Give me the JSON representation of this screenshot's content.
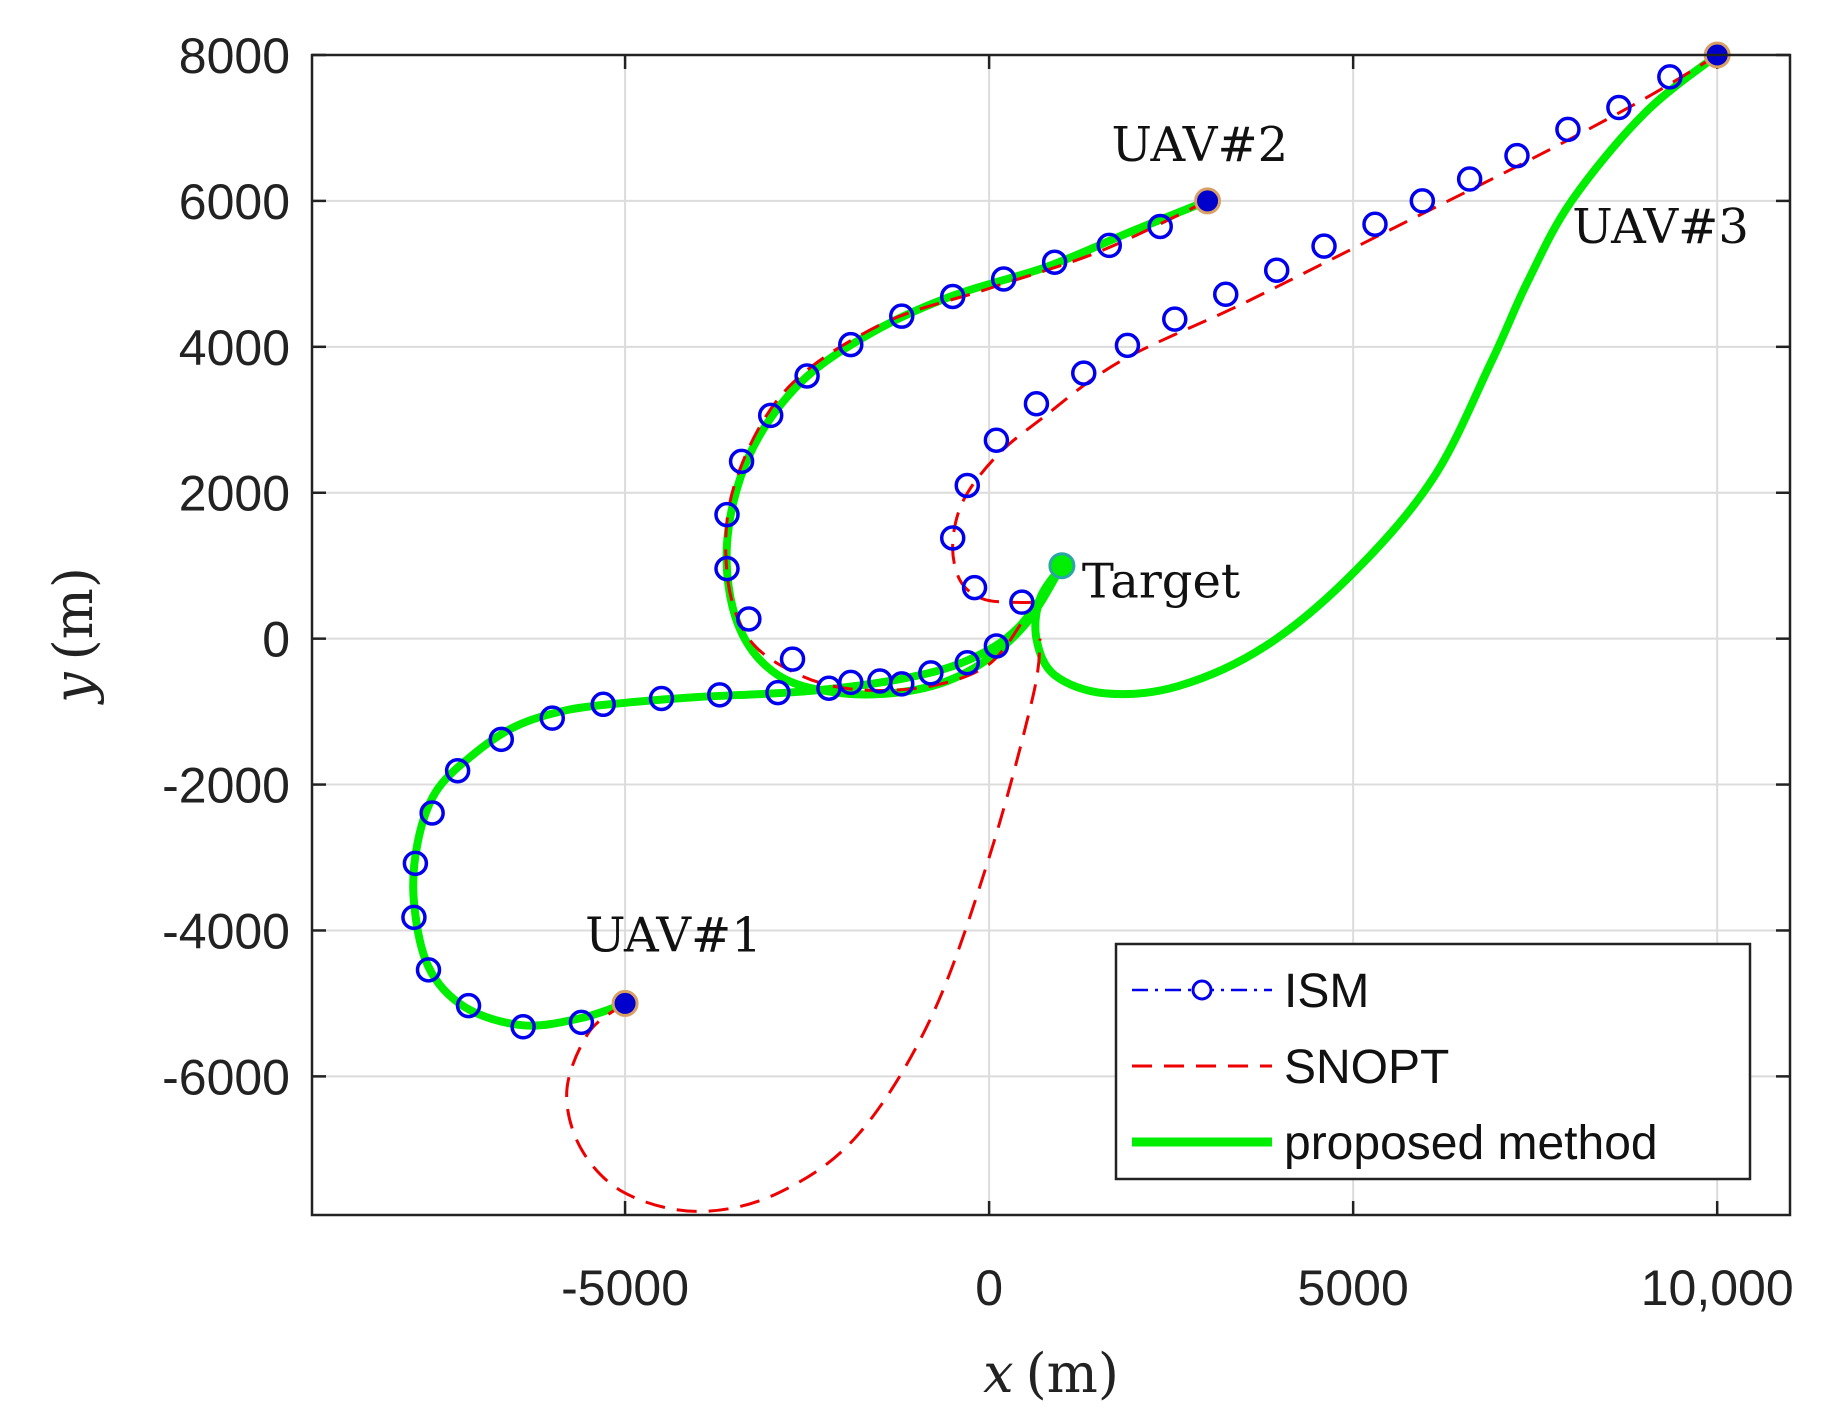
{
  "chart_data": {
    "type": "line",
    "title": "",
    "xlabel_var": "x",
    "xlabel_unit": "(m)",
    "ylabel_var": "y",
    "ylabel_unit": "(m)",
    "xlim": [
      -9300,
      11000
    ],
    "ylim": [
      -7900,
      8000
    ],
    "xticks": [
      -5000,
      0,
      5000,
      10000
    ],
    "xtick_labels": [
      "-5000",
      "0",
      "5000",
      "10,000"
    ],
    "yticks": [
      8000,
      6000,
      4000,
      2000,
      0,
      -2000,
      -4000,
      -6000
    ],
    "ytick_labels": [
      "8000",
      "6000",
      "4000",
      "2000",
      "0",
      "-2000",
      "-4000",
      "-6000"
    ],
    "grid": true,
    "legend_position": "bottom-right",
    "legend": [
      {
        "label": "ISM",
        "style": "dash-dot line with circle markers",
        "color": "#0000ee"
      },
      {
        "label": "SNOPT",
        "style": "dashed line",
        "color": "#ee0000"
      },
      {
        "label": "proposed method",
        "style": "solid thick line",
        "color": "#00ee00"
      }
    ],
    "points": [
      {
        "label": "UAV#1",
        "x": -5000,
        "y": -5000,
        "color": "#0000cc"
      },
      {
        "label": "UAV#2",
        "x": 3000,
        "y": 6000,
        "color": "#0000cc"
      },
      {
        "label": "UAV#3",
        "x": 10000,
        "y": 8000,
        "color": "#0000cc"
      },
      {
        "label": "Target",
        "x": 1000,
        "y": 1000,
        "color": "#00ee00"
      }
    ],
    "series": [
      {
        "name": "proposed method",
        "color": "#00ee00",
        "path": "UAV#1",
        "x": [
          -5000,
          -5600,
          -6400,
          -7200,
          -7700,
          -7900,
          -7850,
          -7600,
          -7100,
          -6500,
          -5800,
          -5000,
          -4000,
          -2500,
          -1200,
          -300,
          400,
          1000
        ],
        "y": [
          -5000,
          -5200,
          -5300,
          -5050,
          -4500,
          -3600,
          -2800,
          -2100,
          -1600,
          -1200,
          -980,
          -880,
          -800,
          -720,
          -550,
          -300,
          150,
          1000
        ]
      },
      {
        "name": "proposed method",
        "color": "#00ee00",
        "path": "UAV#2",
        "x": [
          3000,
          2000,
          800,
          -500,
          -1600,
          -2600,
          -3300,
          -3600,
          -3450,
          -2900,
          -2000,
          -1000,
          -200,
          500,
          1000
        ],
        "y": [
          6000,
          5600,
          5100,
          4700,
          4200,
          3500,
          2500,
          1300,
          200,
          -500,
          -750,
          -700,
          -400,
          200,
          1000
        ]
      },
      {
        "name": "proposed method",
        "color": "#00ee00",
        "path": "UAV#3",
        "x": [
          10000,
          9000,
          8000,
          7400,
          6900,
          6100,
          5000,
          3800,
          2600,
          1600,
          900,
          650,
          700,
          1000
        ],
        "y": [
          8000,
          7200,
          6000,
          4900,
          3800,
          2200,
          900,
          -100,
          -650,
          -750,
          -500,
          0,
          550,
          1000
        ]
      },
      {
        "name": "SNOPT",
        "color": "#ee0000",
        "path": "UAV#1",
        "x": [
          -5000,
          -5500,
          -5800,
          -5600,
          -5000,
          -4000,
          -2900,
          -1800,
          -800,
          0,
          600,
          700
        ],
        "y": [
          -5000,
          -5400,
          -6200,
          -7000,
          -7600,
          -7850,
          -7600,
          -6800,
          -5200,
          -3000,
          -800,
          0
        ]
      },
      {
        "name": "SNOPT",
        "color": "#ee0000",
        "path": "UAV#2",
        "x": [
          3000,
          1500,
          0,
          -1500,
          -2800,
          -3500,
          -3600,
          -3300,
          -2600,
          -1800,
          -800,
          0,
          500
        ],
        "y": [
          6000,
          5300,
          4800,
          4300,
          3400,
          2100,
          900,
          0,
          -500,
          -700,
          -650,
          -350,
          300
        ]
      },
      {
        "name": "SNOPT",
        "color": "#ee0000",
        "path": "UAV#3",
        "x": [
          10000,
          9000,
          7500,
          5500,
          3500,
          1800,
          700,
          100,
          -350,
          -500,
          -400,
          -100,
          300,
          700
        ],
        "y": [
          8000,
          7400,
          6600,
          5600,
          4600,
          3800,
          3000,
          2500,
          1900,
          1300,
          800,
          550,
          500,
          500
        ]
      },
      {
        "name": "ISM",
        "color": "#0000ee",
        "marker": "circle",
        "path": "UAV#1",
        "x": [
          -5600,
          -6400,
          -7150,
          -7700,
          -7900,
          -7880,
          -7650,
          -7300,
          -6700,
          -6000,
          -5300,
          -4500,
          -3700,
          -2900,
          -2200,
          -1500,
          -800,
          -300
        ],
        "y": [
          -5260,
          -5320,
          -5030,
          -4540,
          -3820,
          -3080,
          -2390,
          -1810,
          -1380,
          -1090,
          -900,
          -820,
          -770,
          -740,
          -680,
          -580,
          -470,
          -330
        ]
      },
      {
        "name": "ISM",
        "color": "#0000ee",
        "marker": "circle",
        "path": "UAV#2",
        "x": [
          2350,
          1650,
          900,
          200,
          -500,
          -1200,
          -1900,
          -2500,
          -3000,
          -3400,
          -3600,
          -3600,
          -3300,
          -2700,
          -1900,
          -1200
        ],
        "y": [
          5650,
          5390,
          5160,
          4930,
          4690,
          4420,
          4030,
          3600,
          3060,
          2430,
          1700,
          960,
          270,
          -280,
          -600,
          -620
        ]
      },
      {
        "name": "ISM",
        "color": "#0000ee",
        "marker": "circle",
        "path": "UAV#3",
        "x": [
          9350,
          8650,
          7950,
          7250,
          6600,
          5950,
          5300,
          4600,
          3950,
          3250,
          2550,
          1900,
          1300,
          650,
          100,
          -300,
          -500,
          -200,
          100,
          450
        ],
        "y": [
          7700,
          7280,
          6980,
          6620,
          6300,
          6000,
          5680,
          5380,
          5050,
          4720,
          4380,
          4020,
          3640,
          3220,
          2720,
          2100,
          1380,
          700,
          -100,
          500
        ]
      }
    ]
  }
}
